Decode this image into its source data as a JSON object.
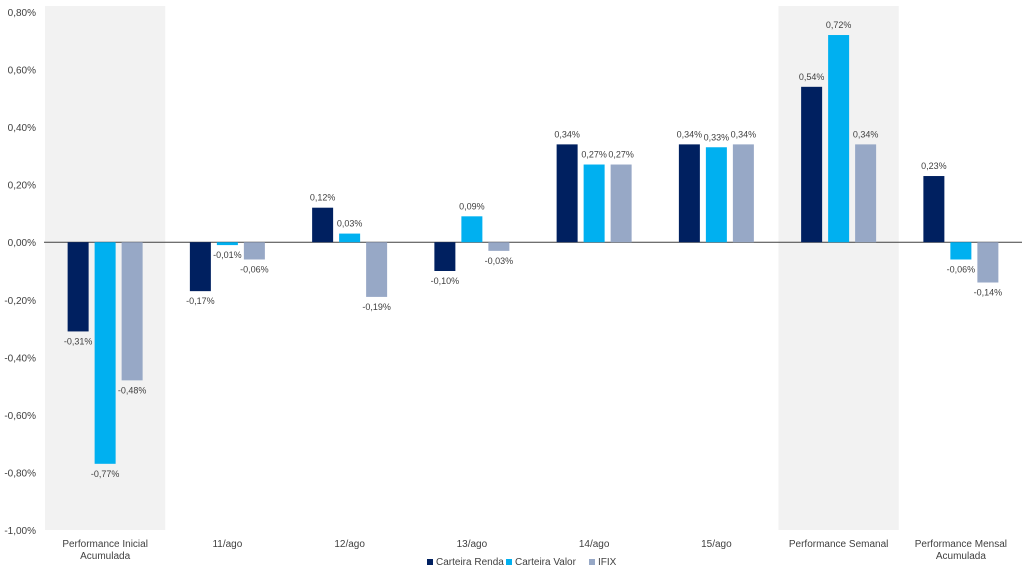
{
  "chart_data": {
    "type": "bar",
    "categories": [
      "Performance Inicial\nAcumulada",
      "11/ago",
      "12/ago",
      "13/ago",
      "14/ago",
      "15/ago",
      "Performance Semanal",
      "Performance Mensal\nAcumulada"
    ],
    "series": [
      {
        "name": "Carteira Renda",
        "color": "#002060",
        "values": [
          -0.31,
          -0.17,
          0.12,
          -0.1,
          0.34,
          0.34,
          0.54,
          0.23
        ],
        "labels": [
          "-0,31%",
          "-0,17%",
          "0,12%",
          "-0,10%",
          "0,34%",
          "0,34%",
          "0,54%",
          "0,23%"
        ]
      },
      {
        "name": "Carteira Valor",
        "color": "#00B0F0",
        "values": [
          -0.77,
          -0.01,
          0.03,
          0.09,
          0.27,
          0.33,
          0.72,
          -0.06
        ],
        "labels": [
          "-0,77%",
          "-0,01%",
          "0,03%",
          "0,09%",
          "0,27%",
          "0,33%",
          "0,72%",
          "-0,06%"
        ]
      },
      {
        "name": "IFIX",
        "color": "#97A8C6",
        "values": [
          -0.48,
          -0.06,
          -0.19,
          -0.03,
          0.27,
          0.34,
          0.34,
          -0.14
        ],
        "labels": [
          "-0,48%",
          "-0,06%",
          "-0,19%",
          "-0,03%",
          "0,27%",
          "0,34%",
          "0,34%",
          "-0,14%"
        ]
      }
    ],
    "ylim": [
      -1.0,
      0.8
    ],
    "yticks": [
      0.8,
      0.6,
      0.4,
      0.2,
      0.0,
      -0.2,
      -0.4,
      -0.6,
      -0.8,
      -1.0
    ],
    "ytick_labels": [
      "0,80%",
      "0,60%",
      "0,40%",
      "0,20%",
      "0,00%",
      "-0,20%",
      "-0,40%",
      "-0,60%",
      "-0,80%",
      "-1,00%"
    ],
    "highlighted_categories": [
      0,
      6
    ],
    "highlight_color": "#F2F2F2",
    "legend_position": "bottom-center",
    "grid": false
  }
}
